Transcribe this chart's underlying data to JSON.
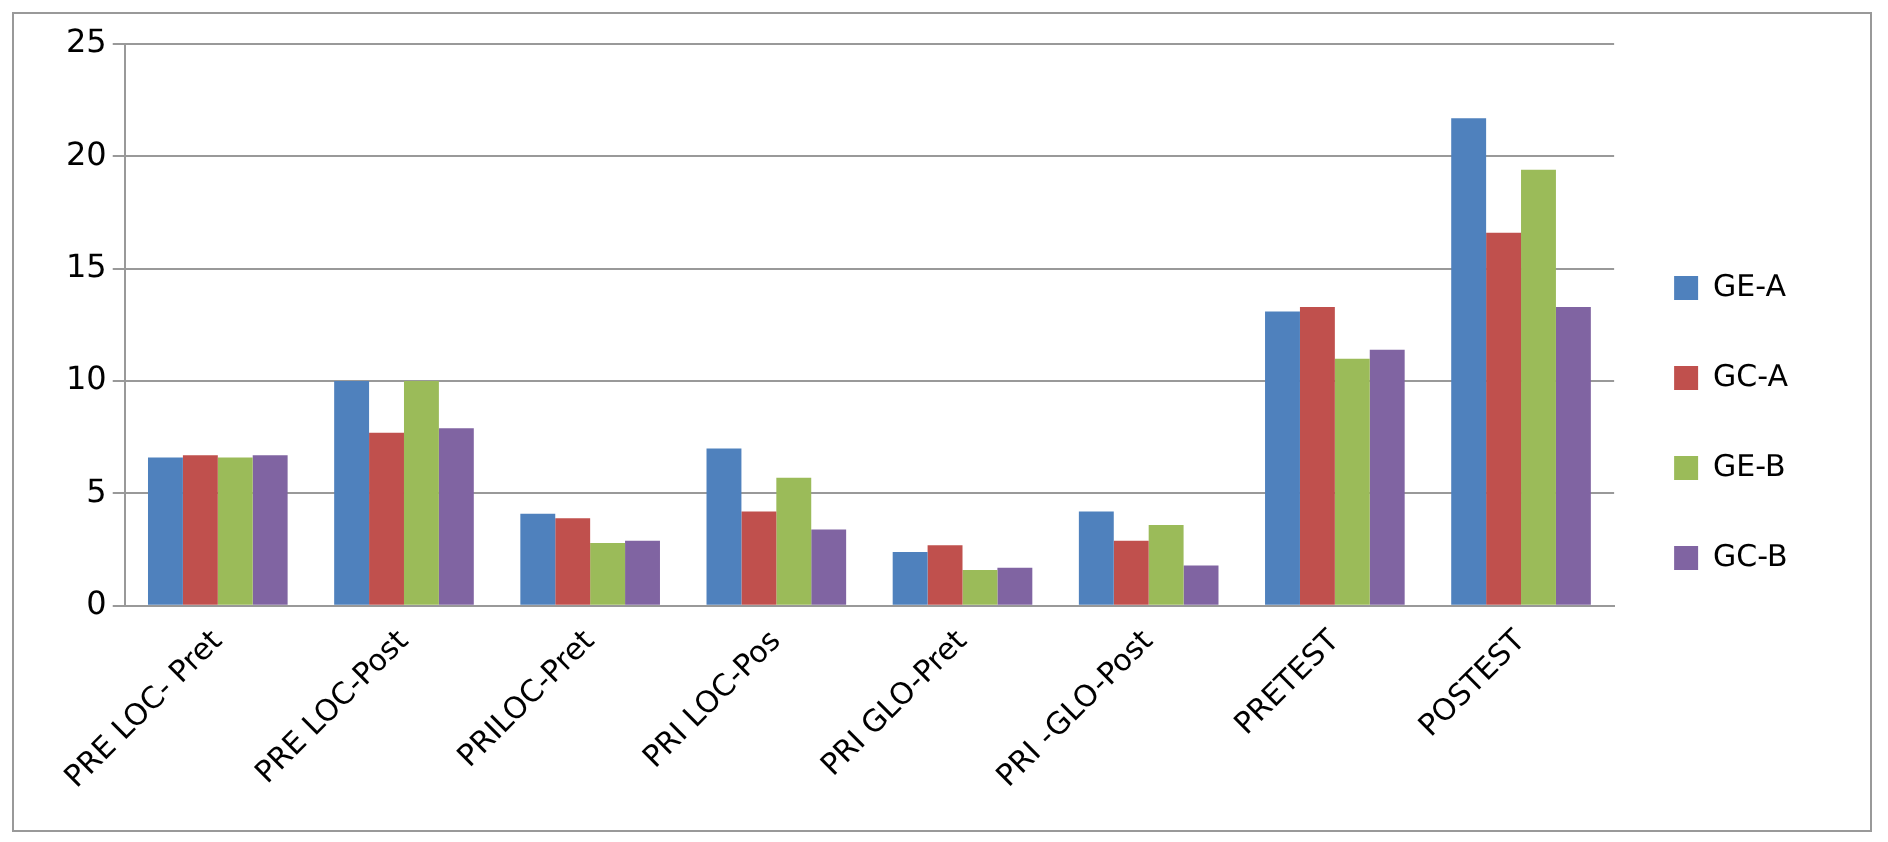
{
  "chart_data": {
    "type": "bar",
    "categories": [
      "PRE LOC- Pret",
      "PRE LOC-Post",
      "PRILOC-Pret",
      "PRI LOC-Pos",
      "PRI GLO-Pret",
      "PRI -GLO-Post",
      "PRETEST",
      "POSTEST"
    ],
    "series": [
      {
        "name": "GE-A",
        "color": "#4f81bd",
        "values": [
          6.6,
          10,
          4.1,
          7,
          2.4,
          4.2,
          13.1,
          21.7
        ]
      },
      {
        "name": "GC-A",
        "color": "#c0504d",
        "values": [
          6.7,
          7.7,
          3.9,
          4.2,
          2.7,
          2.9,
          13.3,
          16.6
        ]
      },
      {
        "name": "GE-B",
        "color": "#9bbb59",
        "values": [
          6.6,
          10,
          2.8,
          5.7,
          1.6,
          3.6,
          11,
          19.4
        ]
      },
      {
        "name": "GC-B",
        "color": "#8064a2",
        "values": [
          6.7,
          7.9,
          2.9,
          3.4,
          1.7,
          1.8,
          11.4,
          13.3
        ]
      }
    ],
    "ylim": [
      0,
      25
    ],
    "yticks": [
      0,
      5,
      10,
      15,
      20,
      25
    ],
    "grid": "y",
    "legend": "right"
  }
}
